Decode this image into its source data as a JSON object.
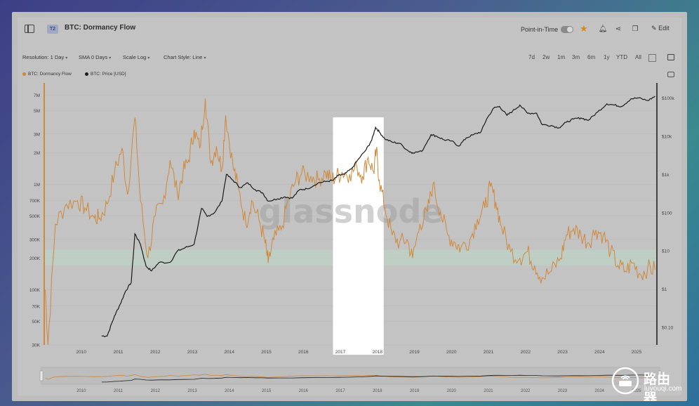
{
  "header": {
    "tier_badge": "T2",
    "title": "BTC: Dormancy Flow",
    "point_in_time_label": "Point-in-Time",
    "edit_label": "Edit"
  },
  "toolbar": {
    "resolution": "Resolution: 1 Day",
    "sma": "SMA 0 Days",
    "scale": "Scale Log",
    "chart_style": "Chart Style: Line",
    "ranges": [
      "7d",
      "2w",
      "1m",
      "3m",
      "6m",
      "1y",
      "YTD",
      "All"
    ]
  },
  "legend": {
    "dormancy": "BTC: Dormancy Flow",
    "price": "BTC: Price [USD]"
  },
  "watermark": {
    "brand": "glassnode",
    "site_name": "路由器",
    "site_url": "luyouqi.com"
  },
  "colors": {
    "dormancy": "#d0883a",
    "price": "#1a1a1a",
    "highlight": "#ffffff",
    "band": "#bcd6c4",
    "accent": "#d18a1c"
  },
  "chart_data": {
    "type": "line",
    "x_axis": {
      "ticks": [
        "2010",
        "2011",
        "2012",
        "2013",
        "2014",
        "2015",
        "2016",
        "2017",
        "2018",
        "2019",
        "2020",
        "2021",
        "2022",
        "2023",
        "2024",
        "2025"
      ]
    },
    "y_left": {
      "scale": "log",
      "ticks": [
        "7M",
        "5M",
        "3M",
        "2M",
        "1M",
        "700K",
        "500K",
        "300K",
        "200K",
        "100K",
        "70K",
        "50K",
        "30K"
      ]
    },
    "y_right": {
      "scale": "log",
      "ticks": [
        "$100k",
        "$10k",
        "$1k",
        "$100",
        "$10",
        "$1",
        "$0.10"
      ]
    },
    "highlight_range": [
      "2017",
      "2018"
    ],
    "band_range": [
      170000,
      240000
    ],
    "series": [
      {
        "name": "BTC: Dormancy Flow",
        "axis": "left",
        "points": [
          [
            2009.03,
            100000
          ],
          [
            2009.1,
            30000
          ],
          [
            2009.3,
            420000
          ],
          [
            2009.6,
            650000
          ],
          [
            2009.9,
            700000
          ],
          [
            2010.1,
            600000
          ],
          [
            2010.35,
            480000
          ],
          [
            2010.5,
            480000
          ],
          [
            2010.7,
            650000
          ],
          [
            2010.9,
            1300000
          ],
          [
            2011.1,
            2200000
          ],
          [
            2011.25,
            800000
          ],
          [
            2011.45,
            4300000
          ],
          [
            2011.6,
            700000
          ],
          [
            2011.8,
            200000
          ],
          [
            2012.0,
            500000
          ],
          [
            2012.2,
            650000
          ],
          [
            2012.4,
            1700000
          ],
          [
            2012.6,
            800000
          ],
          [
            2012.75,
            1300000
          ],
          [
            2012.9,
            1700000
          ],
          [
            2013.05,
            3300000
          ],
          [
            2013.2,
            2200000
          ],
          [
            2013.35,
            6500000
          ],
          [
            2013.5,
            1600000
          ],
          [
            2013.65,
            2300000
          ],
          [
            2013.8,
            1400000
          ],
          [
            2013.9,
            4500000
          ],
          [
            2014.1,
            1500000
          ],
          [
            2014.25,
            900000
          ],
          [
            2014.45,
            420000
          ],
          [
            2014.6,
            700000
          ],
          [
            2014.8,
            460000
          ],
          [
            2014.95,
            300000
          ],
          [
            2015.05,
            180000
          ],
          [
            2015.2,
            300000
          ],
          [
            2015.4,
            370000
          ],
          [
            2015.6,
            720000
          ],
          [
            2015.8,
            1100000
          ],
          [
            2015.95,
            1250000
          ],
          [
            2016.2,
            1200000
          ],
          [
            2016.4,
            1100000
          ],
          [
            2016.6,
            1300000
          ],
          [
            2016.75,
            1100000
          ],
          [
            2016.9,
            1200000
          ],
          [
            2017.05,
            1300000
          ],
          [
            2017.25,
            1250000
          ],
          [
            2017.45,
            1450000
          ],
          [
            2017.6,
            1200000
          ],
          [
            2017.75,
            1800000
          ],
          [
            2017.9,
            1300000
          ],
          [
            2017.97,
            2100000
          ],
          [
            2018.05,
            1100000
          ],
          [
            2018.2,
            600000
          ],
          [
            2018.4,
            330000
          ],
          [
            2018.6,
            280000
          ],
          [
            2018.8,
            300000
          ],
          [
            2018.95,
            200000
          ],
          [
            2019.15,
            420000
          ],
          [
            2019.35,
            550000
          ],
          [
            2019.5,
            1000000
          ],
          [
            2019.7,
            550000
          ],
          [
            2019.9,
            330000
          ],
          [
            2020.1,
            280000
          ],
          [
            2020.25,
            250000
          ],
          [
            2020.5,
            300000
          ],
          [
            2020.7,
            470000
          ],
          [
            2020.9,
            600000
          ],
          [
            2021.05,
            950000
          ],
          [
            2021.2,
            680000
          ],
          [
            2021.35,
            400000
          ],
          [
            2021.6,
            230000
          ],
          [
            2021.85,
            200000
          ],
          [
            2022.05,
            230000
          ],
          [
            2022.25,
            170000
          ],
          [
            2022.45,
            130000
          ],
          [
            2022.7,
            150000
          ],
          [
            2022.95,
            200000
          ],
          [
            2023.1,
            330000
          ],
          [
            2023.3,
            380000
          ],
          [
            2023.5,
            330000
          ],
          [
            2023.7,
            280000
          ],
          [
            2023.9,
            370000
          ],
          [
            2024.1,
            330000
          ],
          [
            2024.3,
            230000
          ],
          [
            2024.5,
            170000
          ],
          [
            2024.7,
            150000
          ],
          [
            2024.9,
            180000
          ],
          [
            2025.1,
            140000
          ],
          [
            2025.3,
            160000
          ],
          [
            2025.5,
            155000
          ]
        ]
      },
      {
        "name": "BTC: Price [USD]",
        "axis": "right",
        "points": [
          [
            2010.55,
            0.06
          ],
          [
            2010.7,
            0.06
          ],
          [
            2010.9,
            0.2
          ],
          [
            2011.05,
            0.4
          ],
          [
            2011.2,
            0.9
          ],
          [
            2011.35,
            1.5
          ],
          [
            2011.45,
            28
          ],
          [
            2011.6,
            15
          ],
          [
            2011.75,
            4
          ],
          [
            2011.9,
            3
          ],
          [
            2012.1,
            5
          ],
          [
            2012.4,
            5
          ],
          [
            2012.6,
            10
          ],
          [
            2012.8,
            12
          ],
          [
            2013.05,
            15
          ],
          [
            2013.25,
            130
          ],
          [
            2013.4,
            80
          ],
          [
            2013.6,
            100
          ],
          [
            2013.8,
            200
          ],
          [
            2013.92,
            1000
          ],
          [
            2014.1,
            700
          ],
          [
            2014.3,
            450
          ],
          [
            2014.5,
            600
          ],
          [
            2014.7,
            400
          ],
          [
            2014.9,
            330
          ],
          [
            2015.05,
            200
          ],
          [
            2015.3,
            230
          ],
          [
            2015.5,
            260
          ],
          [
            2015.7,
            240
          ],
          [
            2015.9,
            400
          ],
          [
            2016.1,
            420
          ],
          [
            2016.4,
            600
          ],
          [
            2016.6,
            650
          ],
          [
            2016.8,
            700
          ],
          [
            2016.95,
            950
          ],
          [
            2017.1,
            1000
          ],
          [
            2017.3,
            1400
          ],
          [
            2017.5,
            2600
          ],
          [
            2017.7,
            4500
          ],
          [
            2017.85,
            8000
          ],
          [
            2017.95,
            17000
          ],
          [
            2018.05,
            13000
          ],
          [
            2018.2,
            8500
          ],
          [
            2018.4,
            7000
          ],
          [
            2018.6,
            6500
          ],
          [
            2018.85,
            4000
          ],
          [
            2018.95,
            3700
          ],
          [
            2019.2,
            4000
          ],
          [
            2019.45,
            11000
          ],
          [
            2019.6,
            10000
          ],
          [
            2019.8,
            8000
          ],
          [
            2020.0,
            7500
          ],
          [
            2020.2,
            5500
          ],
          [
            2020.4,
            9000
          ],
          [
            2020.6,
            11000
          ],
          [
            2020.8,
            13000
          ],
          [
            2020.95,
            28000
          ],
          [
            2021.15,
            55000
          ],
          [
            2021.3,
            60000
          ],
          [
            2021.5,
            35000
          ],
          [
            2021.65,
            45000
          ],
          [
            2021.85,
            65000
          ],
          [
            2022.05,
            40000
          ],
          [
            2022.3,
            40000
          ],
          [
            2022.45,
            20000
          ],
          [
            2022.7,
            19000
          ],
          [
            2022.9,
            16500
          ],
          [
            2023.1,
            23000
          ],
          [
            2023.3,
            28000
          ],
          [
            2023.5,
            30000
          ],
          [
            2023.7,
            26000
          ],
          [
            2023.95,
            43000
          ],
          [
            2024.2,
            70000
          ],
          [
            2024.4,
            65000
          ],
          [
            2024.6,
            60000
          ],
          [
            2024.85,
            95000
          ],
          [
            2025.05,
            100000
          ],
          [
            2025.3,
            85000
          ],
          [
            2025.5,
            110000
          ]
        ]
      }
    ]
  }
}
